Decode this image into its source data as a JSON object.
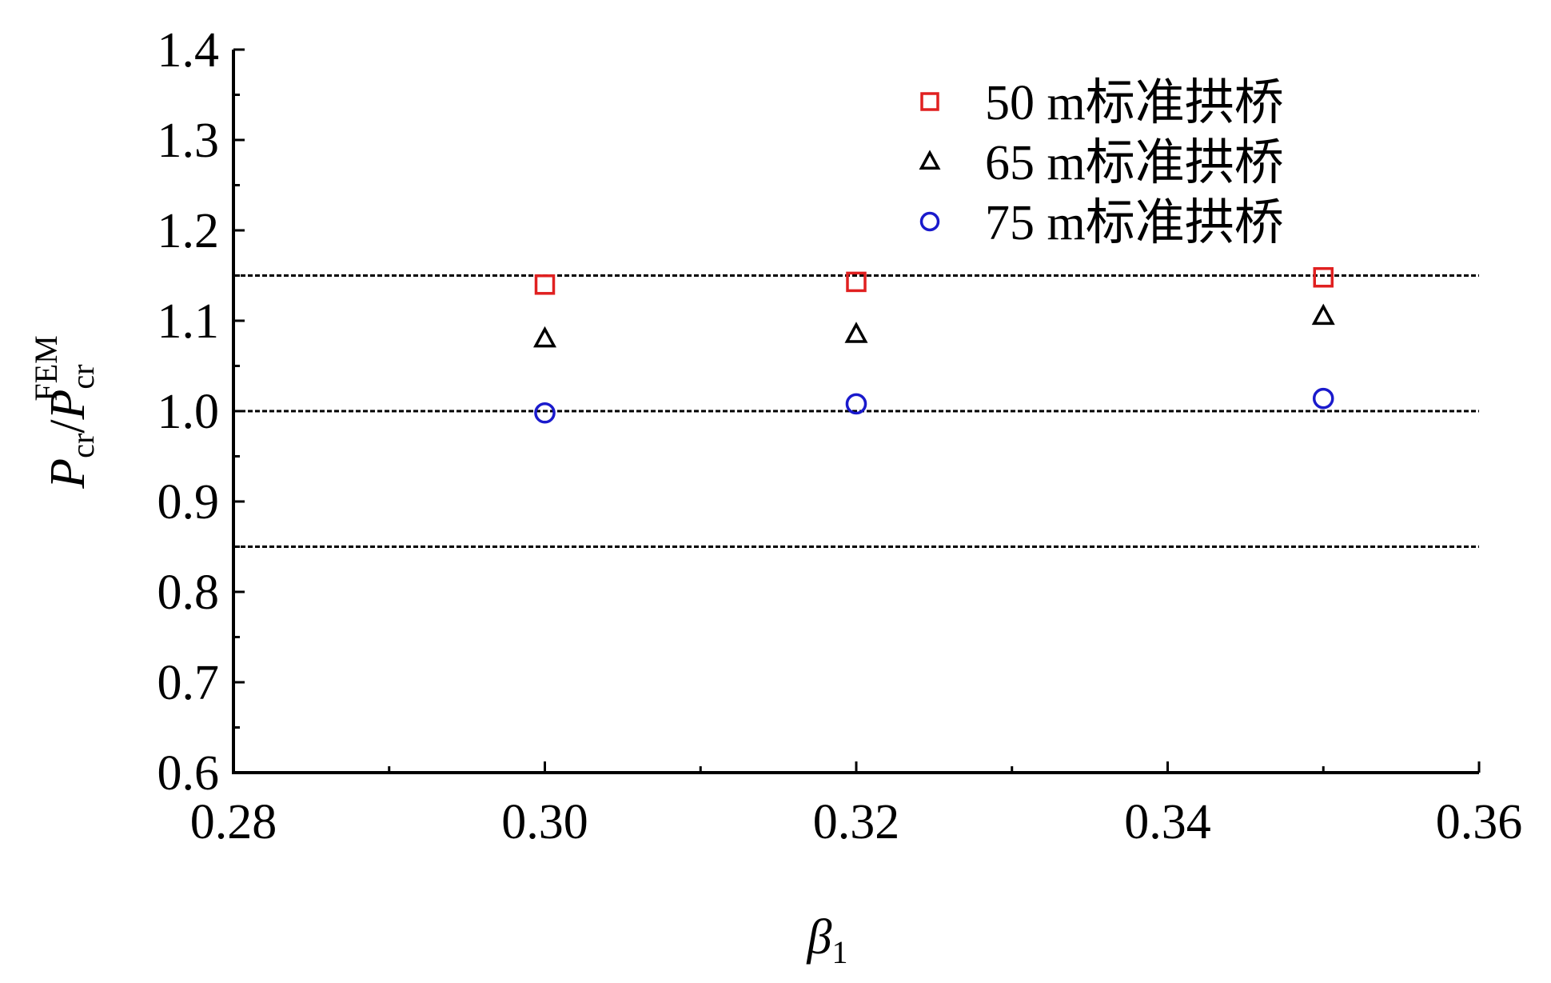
{
  "chart_data": {
    "type": "scatter",
    "xlabel": {
      "symbol": "β",
      "subscript": "1"
    },
    "ylabel": {
      "numerator": "P",
      "numerator_sub": "cr",
      "slash": "/",
      "denominator": "P",
      "denominator_sub": "cr",
      "denominator_sup": "FEM"
    },
    "xlim": [
      0.28,
      0.36
    ],
    "ylim": [
      0.6,
      1.4
    ],
    "x_ticks": [
      "0.28",
      "0.30",
      "0.32",
      "0.34",
      "0.36"
    ],
    "y_ticks": [
      "0.6",
      "0.7",
      "0.8",
      "0.9",
      "1.0",
      "1.1",
      "1.2",
      "1.3",
      "1.4"
    ],
    "reference_lines": [
      1.15,
      1.0,
      0.85
    ],
    "legend_position": "top-right",
    "series": [
      {
        "name": "50 m标准拱桥",
        "marker": "square",
        "color": "#e02020",
        "points": [
          {
            "x": 0.3,
            "y": 1.14
          },
          {
            "x": 0.32,
            "y": 1.143
          },
          {
            "x": 0.35,
            "y": 1.148
          }
        ]
      },
      {
        "name": "65 m标准拱桥",
        "marker": "triangle",
        "color": "#000000",
        "points": [
          {
            "x": 0.3,
            "y": 1.08
          },
          {
            "x": 0.32,
            "y": 1.085
          },
          {
            "x": 0.35,
            "y": 1.105
          }
        ]
      },
      {
        "name": "75 m标准拱桥",
        "marker": "circle",
        "color": "#1a1acc",
        "points": [
          {
            "x": 0.3,
            "y": 0.998
          },
          {
            "x": 0.32,
            "y": 1.008
          },
          {
            "x": 0.35,
            "y": 1.014
          }
        ]
      }
    ]
  }
}
